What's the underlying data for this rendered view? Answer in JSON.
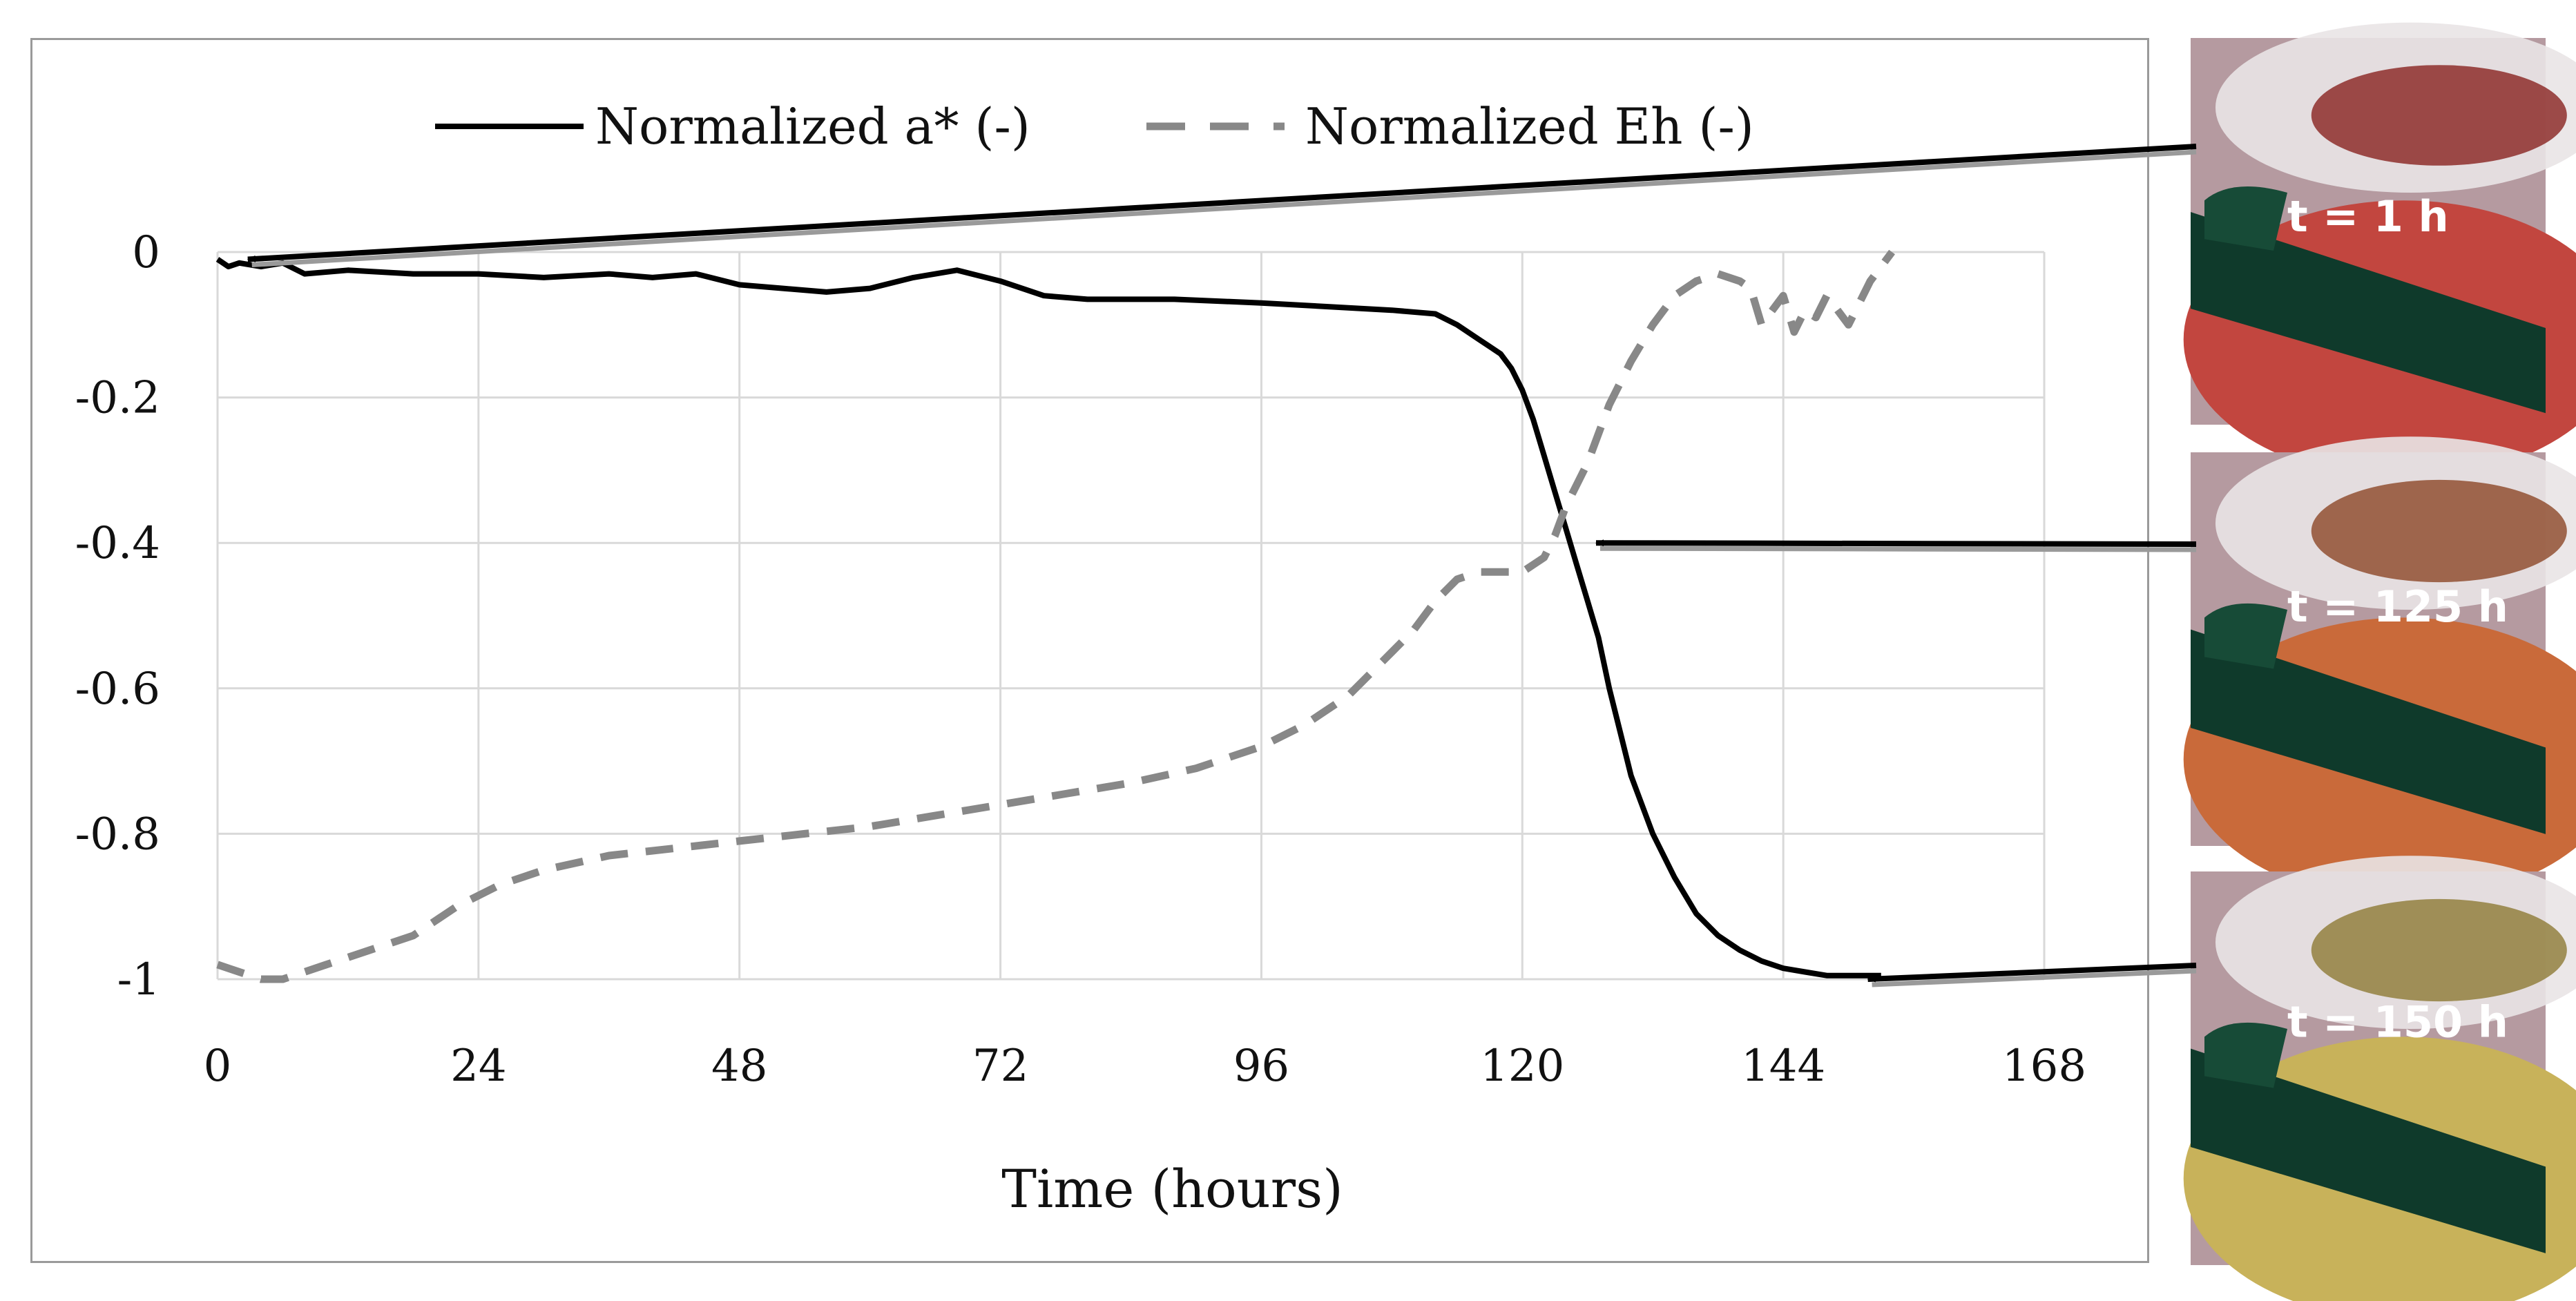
{
  "chart_data": {
    "type": "line",
    "xlabel": "Time (hours)",
    "ylabel": "",
    "xlim": [
      0,
      168
    ],
    "ylim": [
      -1,
      0
    ],
    "x_ticks": [
      0,
      24,
      48,
      72,
      96,
      120,
      144,
      168
    ],
    "y_ticks": [
      0,
      -0.2,
      -0.4,
      -0.6,
      -0.8,
      -1
    ],
    "y_tick_labels": [
      "0",
      "-0.2",
      "-0.4",
      "-0.6",
      "-0.8",
      "-1"
    ],
    "grid": true,
    "legend_position": "top",
    "series": [
      {
        "name": "Normalized a* (-)",
        "style": "solid",
        "color": "#000000",
        "x": [
          0,
          1,
          2,
          4,
          6,
          8,
          12,
          18,
          24,
          30,
          36,
          40,
          44,
          48,
          52,
          56,
          60,
          64,
          68,
          72,
          76,
          80,
          88,
          96,
          102,
          108,
          112,
          114,
          116,
          118,
          119,
          120,
          121,
          122,
          123,
          124,
          125,
          126,
          127,
          128,
          129,
          130,
          132,
          134,
          136,
          138,
          140,
          142,
          144,
          146,
          148,
          150,
          152,
          153
        ],
        "y": [
          -0.01,
          -0.02,
          -0.015,
          -0.02,
          -0.015,
          -0.03,
          -0.025,
          -0.03,
          -0.03,
          -0.035,
          -0.03,
          -0.035,
          -0.03,
          -0.045,
          -0.05,
          -0.055,
          -0.05,
          -0.035,
          -0.025,
          -0.04,
          -0.06,
          -0.065,
          -0.065,
          -0.07,
          -0.075,
          -0.08,
          -0.085,
          -0.1,
          -0.12,
          -0.14,
          -0.16,
          -0.19,
          -0.23,
          -0.28,
          -0.33,
          -0.38,
          -0.43,
          -0.48,
          -0.53,
          -0.6,
          -0.66,
          -0.72,
          -0.8,
          -0.86,
          -0.91,
          -0.94,
          -0.96,
          -0.975,
          -0.985,
          -0.99,
          -0.995,
          -0.995,
          -0.995,
          -0.995
        ]
      },
      {
        "name": "Normalized Eh (-)",
        "style": "dashed",
        "color": "#888888",
        "x": [
          0,
          2,
          4,
          6,
          10,
          14,
          18,
          22,
          26,
          30,
          36,
          42,
          48,
          54,
          60,
          66,
          72,
          78,
          84,
          90,
          96,
          100,
          104,
          106,
          108,
          110,
          112,
          114,
          116,
          118,
          120,
          121,
          122,
          123,
          124,
          126,
          128,
          130,
          132,
          134,
          136,
          138,
          140,
          141,
          142,
          143,
          144,
          145,
          146,
          147,
          148,
          150,
          152,
          154
        ],
        "y": [
          -0.98,
          -0.99,
          -1.0,
          -1.0,
          -0.98,
          -0.96,
          -0.94,
          -0.9,
          -0.87,
          -0.85,
          -0.83,
          -0.82,
          -0.81,
          -0.8,
          -0.79,
          -0.775,
          -0.76,
          -0.745,
          -0.73,
          -0.71,
          -0.68,
          -0.65,
          -0.61,
          -0.58,
          -0.55,
          -0.52,
          -0.48,
          -0.45,
          -0.44,
          -0.44,
          -0.44,
          -0.43,
          -0.42,
          -0.39,
          -0.35,
          -0.29,
          -0.21,
          -0.15,
          -0.1,
          -0.06,
          -0.04,
          -0.03,
          -0.04,
          -0.05,
          -0.1,
          -0.08,
          -0.06,
          -0.11,
          -0.08,
          -0.09,
          -0.06,
          -0.1,
          -0.04,
          0.0
        ]
      }
    ],
    "annotations": [
      {
        "label": "t = 1 h",
        "x": 1,
        "y": -0.01
      },
      {
        "label": "t = 125 h",
        "x": 125,
        "y": -0.4
      },
      {
        "label": "t = 150 h",
        "x": 150,
        "y": -1.0
      }
    ]
  },
  "photos": [
    {
      "label": "t = 1 h",
      "tone": "#c2463f",
      "tone_dark": "#8e2e2c"
    },
    {
      "label": "t = 125 h",
      "tone": "#c96a3a",
      "tone_dark": "#925032"
    },
    {
      "label": "t = 150 h",
      "tone": "#c8b25a",
      "tone_dark": "#938040"
    }
  ]
}
